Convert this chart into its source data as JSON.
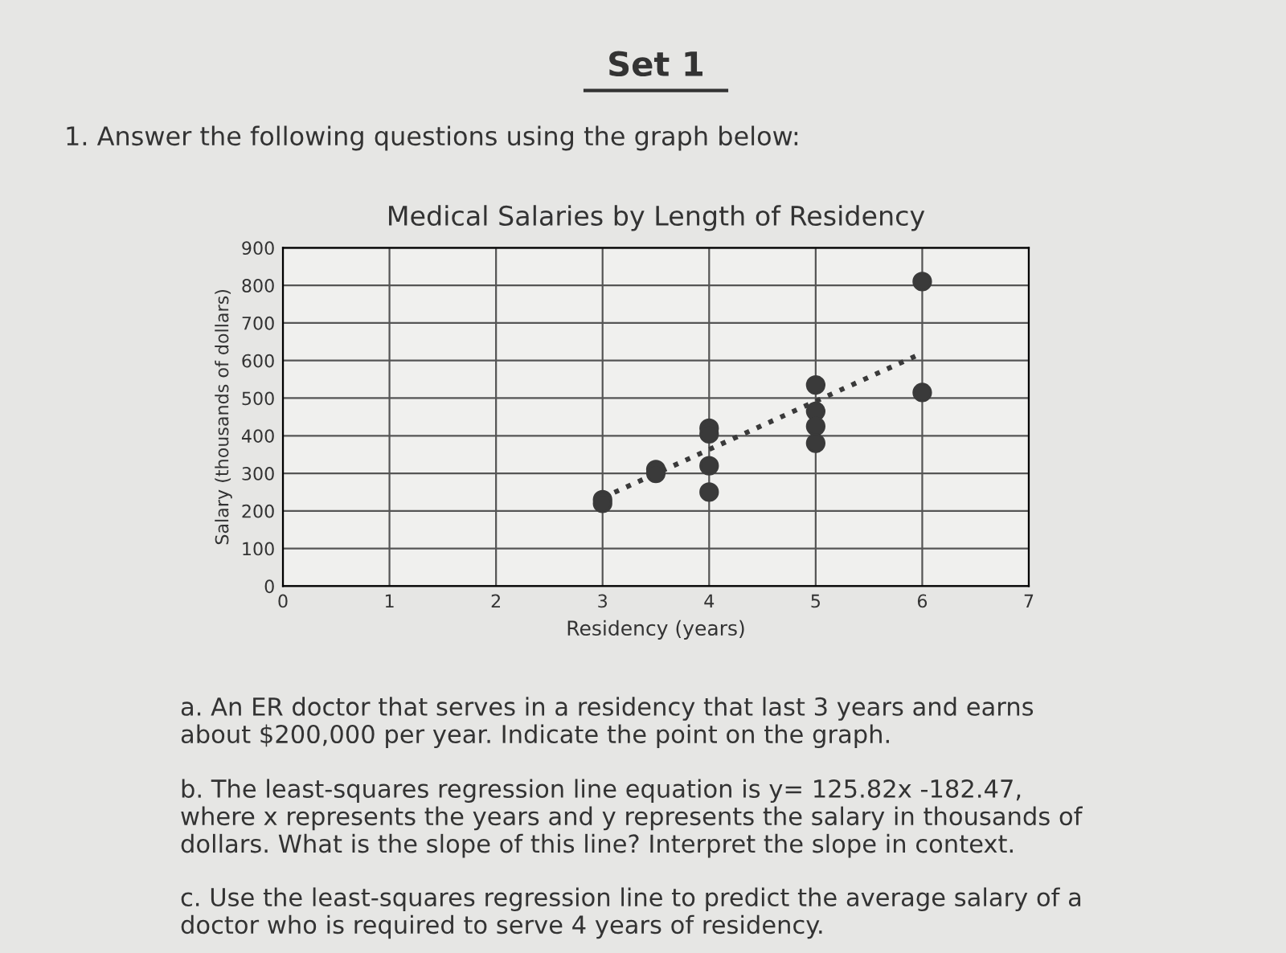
{
  "chart_data": {
    "type": "scatter",
    "title": "Medical Salaries by Length of Residency",
    "xlabel": "Residency (years)",
    "ylabel": "Salary (thousands of dollars)",
    "xlim": [
      0,
      7
    ],
    "xticks": [
      0,
      1,
      2,
      3,
      4,
      5,
      6,
      7
    ],
    "ylim": [
      0,
      900
    ],
    "yticks": [
      0,
      100,
      200,
      300,
      400,
      500,
      600,
      700,
      800,
      900
    ],
    "grid": true,
    "series": [
      {
        "color": "#3a3a3a",
        "marker": "circle",
        "x": [
          3,
          3,
          3.5,
          3.5,
          4,
          4,
          4,
          4,
          5,
          5,
          5,
          5,
          6,
          6
        ],
        "values": [
          230,
          220,
          310,
          300,
          420,
          405,
          320,
          250,
          535,
          465,
          425,
          380,
          810,
          515
        ]
      },
      {
        "type": "line",
        "color": "#3a3a3a",
        "line_style": "dotted",
        "marker": "none",
        "x": [
          3,
          6
        ],
        "values": [
          235,
          620
        ]
      }
    ],
    "annotations": [
      "Set 1",
      "1. Answer the following questions using the graph below:",
      "a. An ER doctor that serves in a residency that last 3 years and earns about $200,000 per year. Indicate the point on the graph.",
      "b. The least-squares regression line equation is y= 125.82x -182.47, where x represents the years and y represents the salary in thousands of dollars. What is the slope of this line? Interpret the slope in context.",
      "c. Use the least-squares regression line to predict the average salary of a doctor who is required to serve 4 years of residency."
    ]
  }
}
